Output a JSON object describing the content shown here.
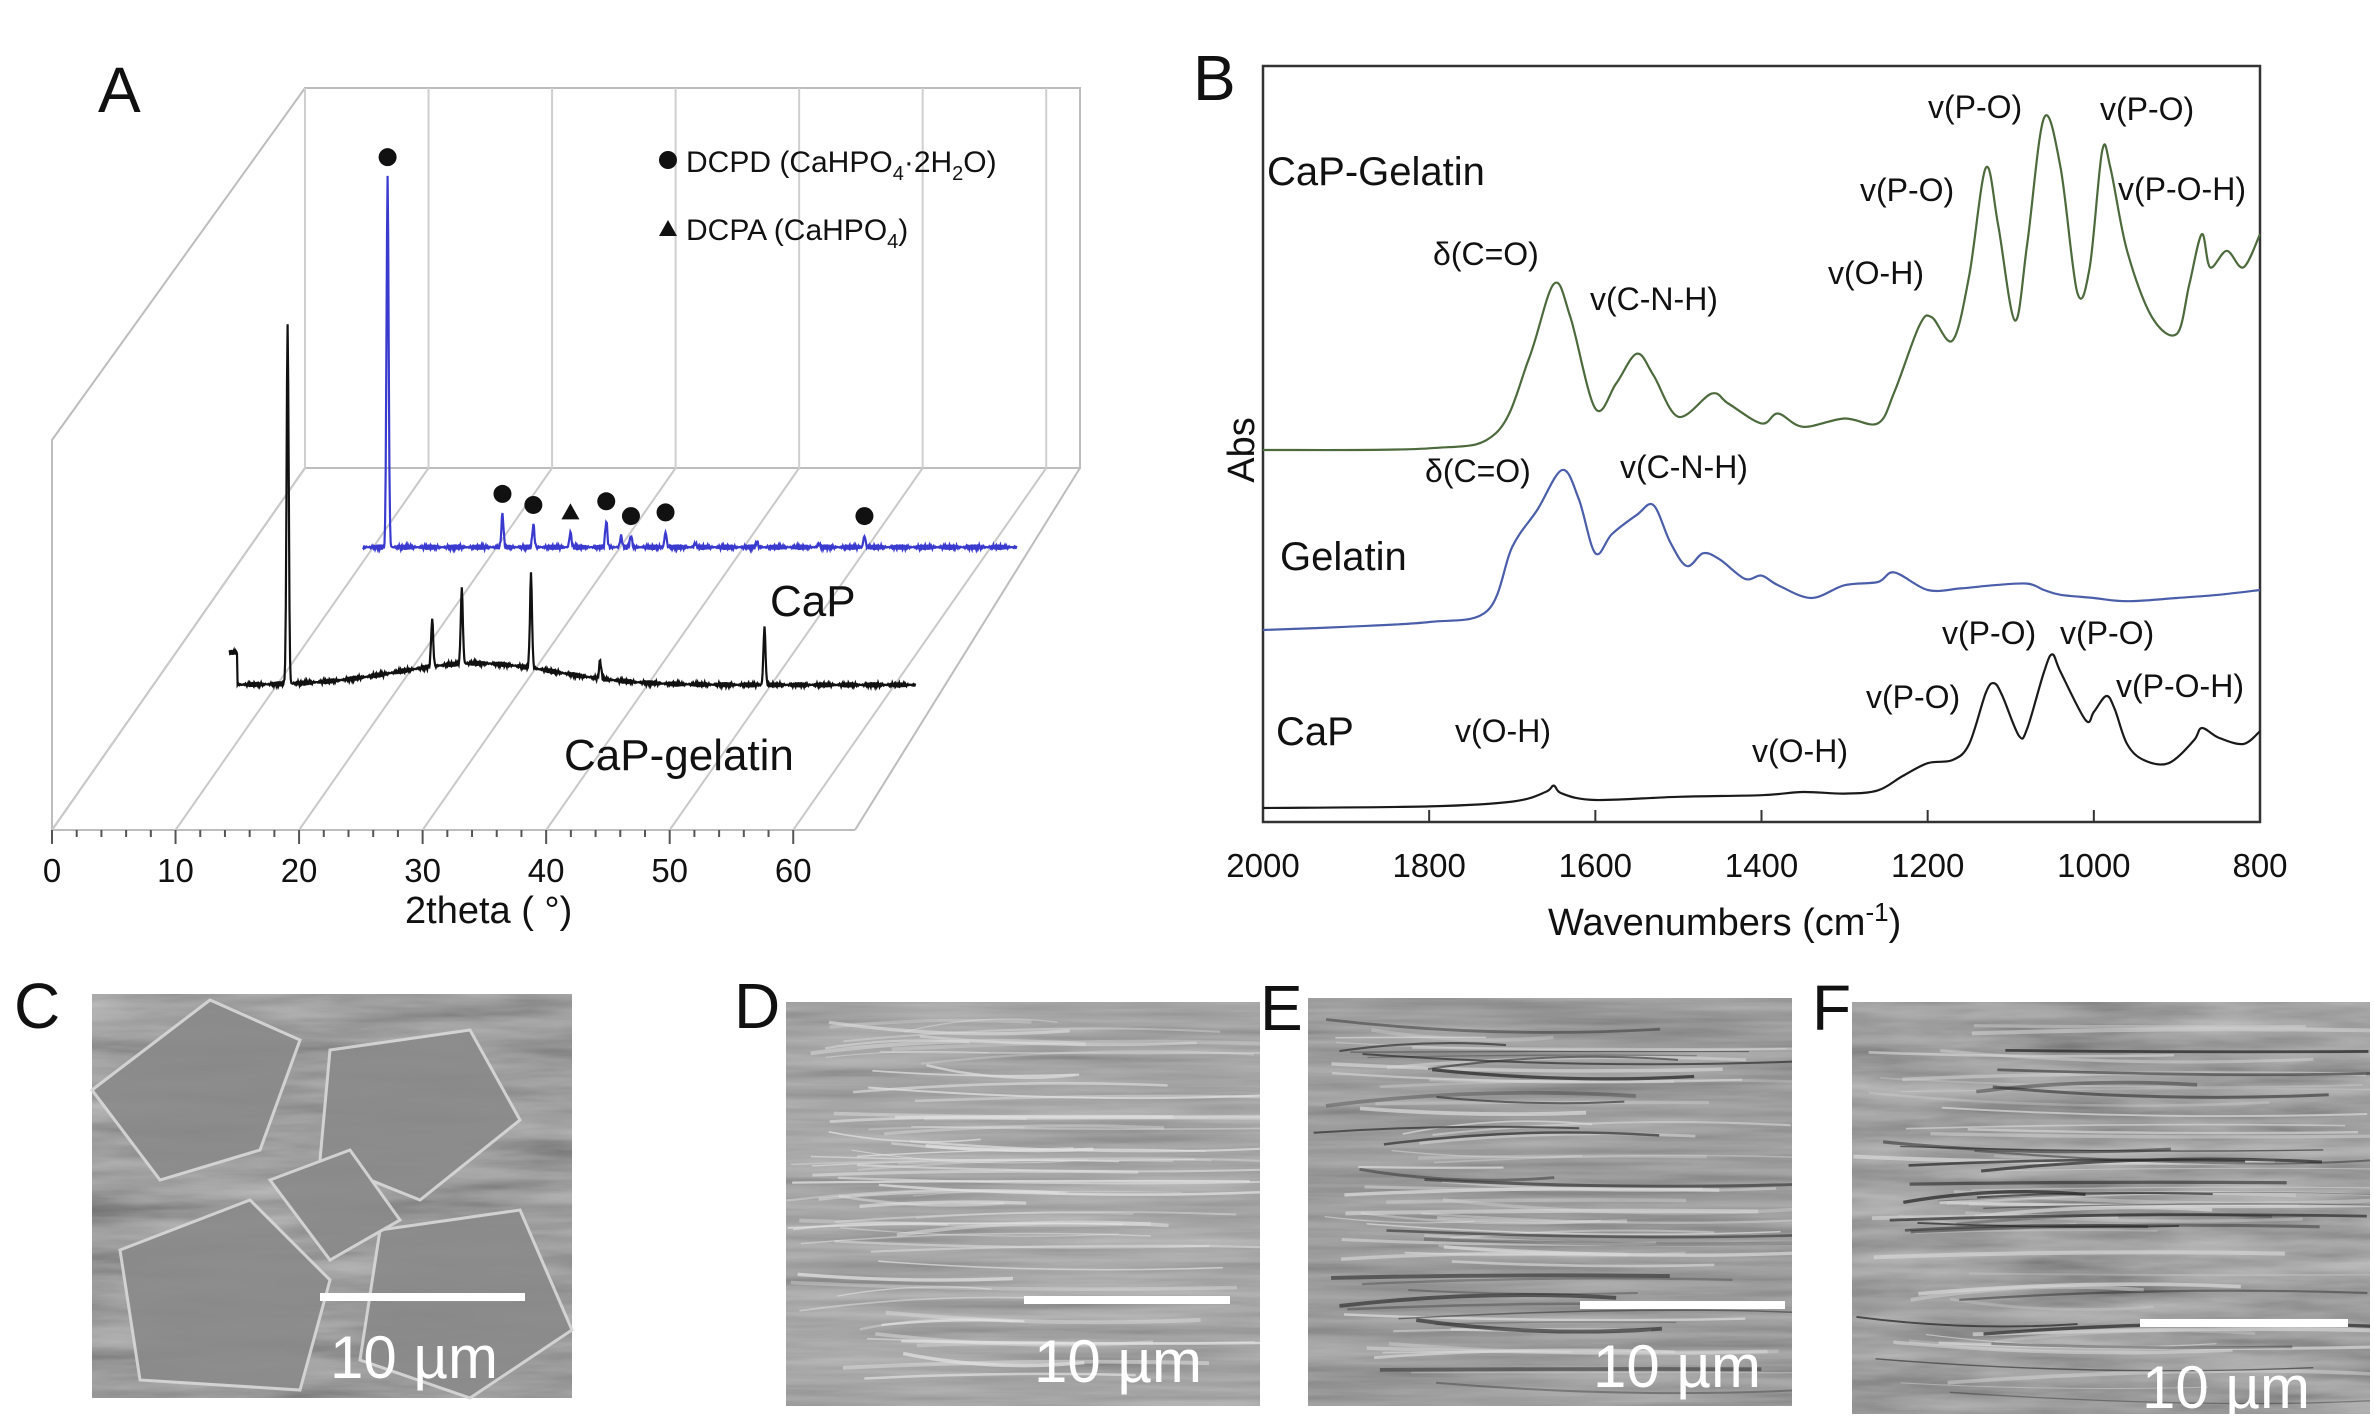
{
  "panels": {
    "a": "A",
    "b": "B",
    "c": "C",
    "d": "D",
    "e": "E",
    "f": "F"
  },
  "chart_data": [
    {
      "type": "line",
      "panel": "A",
      "xlabel": "2theta ( °)",
      "xlim": [
        0,
        65
      ],
      "x_ticks": [
        "0",
        "10",
        "20",
        "30",
        "40",
        "50",
        "60"
      ],
      "legend": [
        {
          "marker": "circle",
          "label": "DCPD (CaHPO4·2H2O)"
        },
        {
          "marker": "triangle",
          "label": "DCPA (CaHPO4)"
        }
      ],
      "series": [
        {
          "name": "CaP",
          "color": "#3a3acf",
          "baseline": 1,
          "peaks": [
            {
              "x": 11.6,
              "h": 100,
              "marker": "circle"
            },
            {
              "x": 20.9,
              "h": 9,
              "marker": "circle"
            },
            {
              "x": 23.4,
              "h": 6,
              "marker": "circle"
            },
            {
              "x": 26.4,
              "h": 4,
              "marker": "triangle"
            },
            {
              "x": 29.3,
              "h": 7,
              "marker": "circle"
            },
            {
              "x": 30.5,
              "h": 3
            },
            {
              "x": 31.3,
              "h": 3,
              "marker": "circle"
            },
            {
              "x": 34.1,
              "h": 4,
              "marker": "circle"
            },
            {
              "x": 36.5,
              "h": 1
            },
            {
              "x": 41.5,
              "h": 1.5
            },
            {
              "x": 46.5,
              "h": 1
            },
            {
              "x": 50.2,
              "h": 3,
              "marker": "circle"
            }
          ]
        },
        {
          "name": "CaP-gelatin",
          "color": "#111111",
          "baseline": 3,
          "hump": {
            "center": 27,
            "width": 9,
            "height": 6
          },
          "peaks": [
            {
              "x": 11.7,
              "h": 100
            },
            {
              "x": 23.4,
              "h": 13
            },
            {
              "x": 25.8,
              "h": 21
            },
            {
              "x": 31.4,
              "h": 26
            },
            {
              "x": 37.0,
              "h": 5
            },
            {
              "x": 50.3,
              "h": 16
            }
          ]
        }
      ]
    },
    {
      "type": "line",
      "panel": "B",
      "ylabel": "Abs",
      "xlabel": "Wavenumbers (cm-1)",
      "xlabel_main": "Wavenumbers (cm",
      "xlabel_sup": "-1",
      "xlabel_end": ")",
      "xlim": [
        2000,
        800
      ],
      "x_ticks": [
        "2000",
        "1800",
        "1600",
        "1400",
        "1200",
        "1000",
        "800"
      ],
      "series": [
        {
          "name": "CaP-Gelatin",
          "color": "#4c6a3c",
          "points": [
            [
              2000,
              0
            ],
            [
              1800,
              1
            ],
            [
              1720,
              10
            ],
            [
              1680,
              55
            ],
            [
              1650,
              100
            ],
            [
              1630,
              80
            ],
            [
              1600,
              25
            ],
            [
              1575,
              40
            ],
            [
              1550,
              58
            ],
            [
              1530,
              45
            ],
            [
              1500,
              20
            ],
            [
              1460,
              34
            ],
            [
              1440,
              28
            ],
            [
              1400,
              16
            ],
            [
              1380,
              22
            ],
            [
              1350,
              14
            ],
            [
              1300,
              19
            ],
            [
              1260,
              16
            ],
            [
              1240,
              35
            ],
            [
              1210,
              75
            ],
            [
              1195,
              80
            ],
            [
              1170,
              66
            ],
            [
              1150,
              105
            ],
            [
              1130,
              170
            ],
            [
              1115,
              135
            ],
            [
              1095,
              78
            ],
            [
              1080,
              125
            ],
            [
              1060,
              200
            ],
            [
              1040,
              170
            ],
            [
              1020,
              95
            ],
            [
              1005,
              110
            ],
            [
              990,
              180
            ],
            [
              980,
              170
            ],
            [
              960,
              120
            ],
            [
              930,
              80
            ],
            [
              900,
              70
            ],
            [
              885,
              100
            ],
            [
              870,
              130
            ],
            [
              860,
              110
            ],
            [
              840,
              120
            ],
            [
              820,
              110
            ],
            [
              800,
              130
            ]
          ],
          "annotations": [
            "δ(C=O)",
            "v(C-N-H)",
            "v(O-H)",
            "v(P-O)",
            "v(P-O)",
            "v(P-O)",
            "v(P-O-H)"
          ]
        },
        {
          "name": "Gelatin",
          "color": "#4a5eaa",
          "points": [
            [
              2000,
              0
            ],
            [
              1900,
              2
            ],
            [
              1800,
              5
            ],
            [
              1730,
              12
            ],
            [
              1700,
              52
            ],
            [
              1670,
              75
            ],
            [
              1640,
              100
            ],
            [
              1620,
              82
            ],
            [
              1600,
              48
            ],
            [
              1580,
              60
            ],
            [
              1550,
              72
            ],
            [
              1530,
              78
            ],
            [
              1510,
              55
            ],
            [
              1490,
              40
            ],
            [
              1470,
              48
            ],
            [
              1450,
              44
            ],
            [
              1420,
              32
            ],
            [
              1400,
              34
            ],
            [
              1380,
              28
            ],
            [
              1340,
              20
            ],
            [
              1300,
              28
            ],
            [
              1260,
              30
            ],
            [
              1240,
              36
            ],
            [
              1200,
              25
            ],
            [
              1160,
              26
            ],
            [
              1120,
              28
            ],
            [
              1080,
              29
            ],
            [
              1060,
              25
            ],
            [
              1040,
              22
            ],
            [
              1000,
              20
            ],
            [
              960,
              18
            ],
            [
              900,
              20
            ],
            [
              850,
              22
            ],
            [
              800,
              25
            ]
          ],
          "annotations": [
            "δ(C=O)",
            "v(C-N-H)"
          ]
        },
        {
          "name": "CaP",
          "color": "#1a1a1a",
          "points": [
            [
              2000,
              0
            ],
            [
              1800,
              1
            ],
            [
              1700,
              4
            ],
            [
              1660,
              10
            ],
            [
              1650,
              14
            ],
            [
              1640,
              9
            ],
            [
              1600,
              5
            ],
            [
              1500,
              7
            ],
            [
              1400,
              8
            ],
            [
              1350,
              10
            ],
            [
              1300,
              9
            ],
            [
              1260,
              11
            ],
            [
              1230,
              20
            ],
            [
              1200,
              28
            ],
            [
              1170,
              30
            ],
            [
              1150,
              40
            ],
            [
              1130,
              72
            ],
            [
              1120,
              78
            ],
            [
              1110,
              70
            ],
            [
              1090,
              45
            ],
            [
              1080,
              50
            ],
            [
              1060,
              85
            ],
            [
              1050,
              96
            ],
            [
              1040,
              85
            ],
            [
              1010,
              55
            ],
            [
              1000,
              60
            ],
            [
              985,
              70
            ],
            [
              975,
              62
            ],
            [
              960,
              40
            ],
            [
              940,
              30
            ],
            [
              910,
              28
            ],
            [
              880,
              42
            ],
            [
              870,
              50
            ],
            [
              850,
              44
            ],
            [
              820,
              40
            ],
            [
              800,
              48
            ]
          ],
          "annotations": [
            "v(O-H)",
            "v(O-H)",
            "v(P-O)",
            "v(P-O)",
            "v(P-O)",
            "v(P-O-H)"
          ]
        }
      ]
    }
  ],
  "scale_bars": {
    "c": "10 µm",
    "d": "10 µm",
    "e": "10 µm",
    "f": "10 µm"
  }
}
